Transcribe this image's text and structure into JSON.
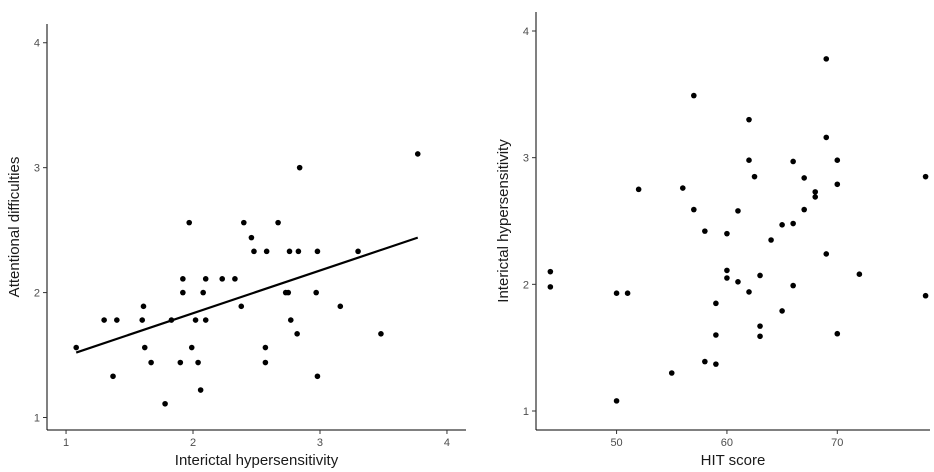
{
  "chart_data": [
    {
      "type": "scatter",
      "xlabel": "Interictal hypersensitivity",
      "ylabel": "Attentional difficulties",
      "xlim": [
        0.85,
        4.15
      ],
      "ylim": [
        0.9,
        4.15
      ],
      "xticks": [
        1,
        2,
        3,
        4
      ],
      "yticks": [
        1,
        2,
        3,
        4
      ],
      "grid": false,
      "point_color": "#000000",
      "trendline": {
        "x": [
          1.08,
          3.77
        ],
        "y": [
          1.52,
          2.44
        ],
        "color": "#000000"
      },
      "points": [
        {
          "x": 1.08,
          "y": 1.56
        },
        {
          "x": 1.3,
          "y": 1.78
        },
        {
          "x": 1.37,
          "y": 1.33
        },
        {
          "x": 1.4,
          "y": 1.78
        },
        {
          "x": 1.6,
          "y": 1.78
        },
        {
          "x": 1.61,
          "y": 1.89
        },
        {
          "x": 1.62,
          "y": 1.56
        },
        {
          "x": 1.67,
          "y": 1.44
        },
        {
          "x": 1.78,
          "y": 1.11
        },
        {
          "x": 1.83,
          "y": 1.78
        },
        {
          "x": 1.9,
          "y": 1.44
        },
        {
          "x": 1.92,
          "y": 2.0
        },
        {
          "x": 1.92,
          "y": 2.11
        },
        {
          "x": 1.97,
          "y": 2.56
        },
        {
          "x": 1.99,
          "y": 1.56
        },
        {
          "x": 2.02,
          "y": 1.78
        },
        {
          "x": 2.04,
          "y": 1.44
        },
        {
          "x": 2.06,
          "y": 1.22
        },
        {
          "x": 2.08,
          "y": 2.0
        },
        {
          "x": 2.1,
          "y": 1.78
        },
        {
          "x": 2.1,
          "y": 2.11
        },
        {
          "x": 2.23,
          "y": 2.11
        },
        {
          "x": 2.33,
          "y": 2.11
        },
        {
          "x": 2.38,
          "y": 1.89
        },
        {
          "x": 2.4,
          "y": 2.56
        },
        {
          "x": 2.46,
          "y": 2.44
        },
        {
          "x": 2.48,
          "y": 2.33
        },
        {
          "x": 2.57,
          "y": 1.56
        },
        {
          "x": 2.57,
          "y": 1.44
        },
        {
          "x": 2.58,
          "y": 2.33
        },
        {
          "x": 2.67,
          "y": 2.56
        },
        {
          "x": 2.73,
          "y": 2.0
        },
        {
          "x": 2.75,
          "y": 2.0
        },
        {
          "x": 2.76,
          "y": 2.33
        },
        {
          "x": 2.77,
          "y": 1.78
        },
        {
          "x": 2.82,
          "y": 1.67
        },
        {
          "x": 2.83,
          "y": 2.33
        },
        {
          "x": 2.84,
          "y": 3.0
        },
        {
          "x": 2.97,
          "y": 2.0
        },
        {
          "x": 2.98,
          "y": 1.33
        },
        {
          "x": 2.98,
          "y": 2.33
        },
        {
          "x": 3.3,
          "y": 2.33
        },
        {
          "x": 3.16,
          "y": 1.89
        },
        {
          "x": 3.48,
          "y": 1.67
        },
        {
          "x": 3.77,
          "y": 3.11
        }
      ]
    },
    {
      "type": "scatter",
      "xlabel": "HIT score",
      "ylabel": "Interictal hypersensitivity",
      "xlim": [
        42.7,
        78.4
      ],
      "ylim": [
        0.85,
        4.15
      ],
      "xticks": [
        50,
        60,
        70
      ],
      "yticks": [
        1,
        2,
        3,
        4
      ],
      "grid": false,
      "point_color": "#000000",
      "points": [
        {
          "x": 44,
          "y": 2.1
        },
        {
          "x": 44,
          "y": 1.98
        },
        {
          "x": 50,
          "y": 1.93
        },
        {
          "x": 51,
          "y": 1.93
        },
        {
          "x": 50,
          "y": 1.08
        },
        {
          "x": 52,
          "y": 2.75
        },
        {
          "x": 55,
          "y": 1.3
        },
        {
          "x": 56,
          "y": 2.76
        },
        {
          "x": 57,
          "y": 3.49
        },
        {
          "x": 57,
          "y": 2.59
        },
        {
          "x": 58,
          "y": 2.42
        },
        {
          "x": 58,
          "y": 1.39
        },
        {
          "x": 59,
          "y": 1.37
        },
        {
          "x": 59,
          "y": 1.85
        },
        {
          "x": 59,
          "y": 1.6
        },
        {
          "x": 60,
          "y": 2.4
        },
        {
          "x": 60,
          "y": 2.11
        },
        {
          "x": 60,
          "y": 2.05
        },
        {
          "x": 61,
          "y": 2.58
        },
        {
          "x": 61,
          "y": 2.02
        },
        {
          "x": 62,
          "y": 3.3
        },
        {
          "x": 62,
          "y": 2.98
        },
        {
          "x": 62,
          "y": 1.94
        },
        {
          "x": 62.5,
          "y": 2.85
        },
        {
          "x": 63,
          "y": 2.07
        },
        {
          "x": 63,
          "y": 1.67
        },
        {
          "x": 63,
          "y": 1.59
        },
        {
          "x": 64,
          "y": 2.35
        },
        {
          "x": 65,
          "y": 2.47
        },
        {
          "x": 65,
          "y": 1.79
        },
        {
          "x": 66,
          "y": 2.97
        },
        {
          "x": 66,
          "y": 2.48
        },
        {
          "x": 66,
          "y": 1.99
        },
        {
          "x": 67,
          "y": 2.84
        },
        {
          "x": 67,
          "y": 2.59
        },
        {
          "x": 68,
          "y": 2.73
        },
        {
          "x": 68,
          "y": 2.69
        },
        {
          "x": 69,
          "y": 3.78
        },
        {
          "x": 69,
          "y": 3.16
        },
        {
          "x": 69,
          "y": 2.24
        },
        {
          "x": 70,
          "y": 2.98
        },
        {
          "x": 70,
          "y": 2.79
        },
        {
          "x": 70,
          "y": 1.61
        },
        {
          "x": 72,
          "y": 2.08
        },
        {
          "x": 78,
          "y": 2.85
        },
        {
          "x": 78,
          "y": 1.91
        }
      ]
    }
  ]
}
